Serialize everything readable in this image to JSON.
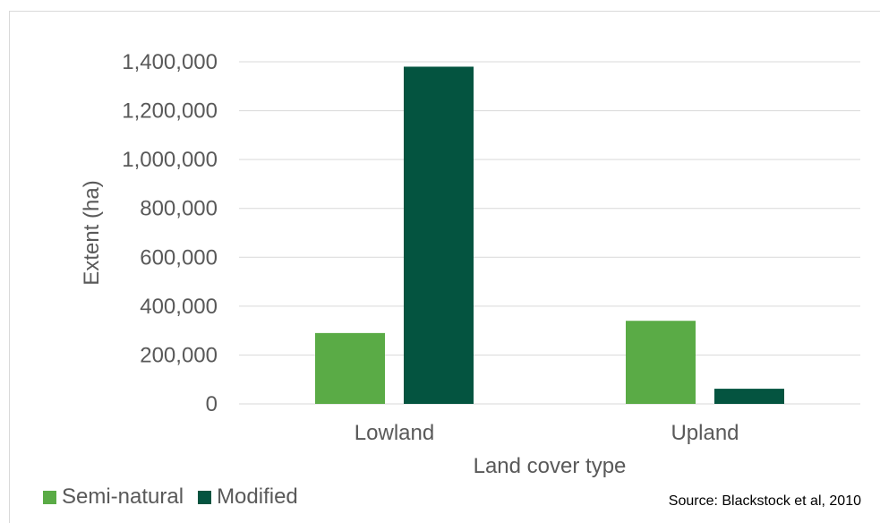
{
  "chart_data": {
    "type": "bar",
    "categories": [
      "Lowland",
      "Upland"
    ],
    "series": [
      {
        "name": "Semi-natural",
        "values": [
          290000,
          340000
        ],
        "color": "#5aab46"
      },
      {
        "name": "Modified",
        "values": [
          1380000,
          62000
        ],
        "color": "#045440"
      }
    ],
    "xlabel": "Land cover type",
    "ylabel": "Extent (ha)",
    "ylim": [
      0,
      1400000
    ],
    "yticks": [
      "0",
      "200,000",
      "400,000",
      "600,000",
      "800,000",
      "1,000,000",
      "1,200,000",
      "1,400,000"
    ],
    "grid": true,
    "legend_position": "bottom-left"
  },
  "source": "Source: Blackstock et al, 2010",
  "colors": {
    "gridline": "#d9d9d9",
    "text": "#595959"
  }
}
